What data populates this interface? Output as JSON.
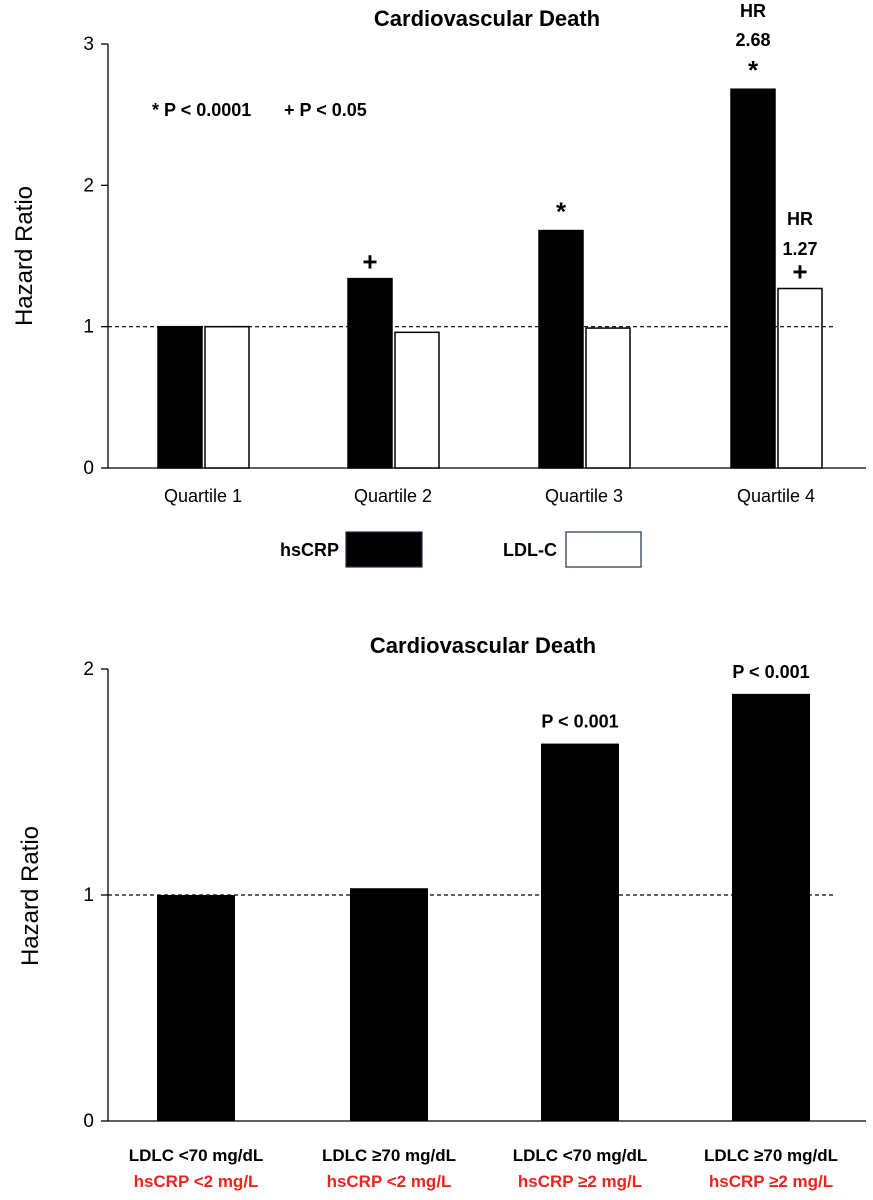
{
  "chart_data": [
    {
      "type": "bar",
      "title": "Cardiovascular Death",
      "ylabel": "Hazard Ratio",
      "ylim": [
        0,
        3
      ],
      "yticks": [
        "0",
        "1",
        "2",
        "3"
      ],
      "reference_line": 1,
      "categories": [
        "Quartile 1",
        "Quartile 2",
        "Quartile 3",
        "Quartile 4"
      ],
      "series": [
        {
          "name": "hsCRP",
          "color": "#000000",
          "values": [
            1.0,
            1.34,
            1.68,
            2.68
          ],
          "markers": [
            "",
            "+",
            "*",
            "*"
          ]
        },
        {
          "name": "LDL-C",
          "color": "#ffffff",
          "values": [
            1.0,
            0.96,
            0.99,
            1.27
          ],
          "markers": [
            "",
            "",
            "",
            "+"
          ]
        }
      ],
      "significance_note": [
        "* P < 0.0001",
        "+ P < 0.05"
      ],
      "hr_labels": [
        {
          "series": "hsCRP",
          "category": "Quartile 4",
          "lines": [
            "HR",
            "2.68"
          ]
        },
        {
          "series": "LDL-C",
          "category": "Quartile 4",
          "lines": [
            "HR",
            "1.27"
          ]
        }
      ],
      "legend": "bottom"
    },
    {
      "type": "bar",
      "title": "Cardiovascular Death",
      "ylabel": "Hazard Ratio",
      "ylim": [
        0,
        2
      ],
      "yticks": [
        "0",
        "1",
        "2"
      ],
      "reference_line": 1,
      "categories": [
        {
          "line1": "LDLC <70 mg/dL",
          "line2": "hsCRP <2 mg/L"
        },
        {
          "line1": "LDLC ≥70 mg/dL",
          "line2": "hsCRP <2 mg/L"
        },
        {
          "line1": "LDLC <70 mg/dL",
          "line2": "hsCRP ≥2 mg/L"
        },
        {
          "line1": "LDLC ≥70 mg/dL",
          "line2": "hsCRP ≥2 mg/L"
        }
      ],
      "values": [
        1.0,
        1.03,
        1.67,
        1.89
      ],
      "annotations": [
        "",
        "",
        "P < 0.001",
        "P < 0.001"
      ],
      "bar_color": "#000000",
      "category_line2_color": "#e8251f"
    }
  ]
}
